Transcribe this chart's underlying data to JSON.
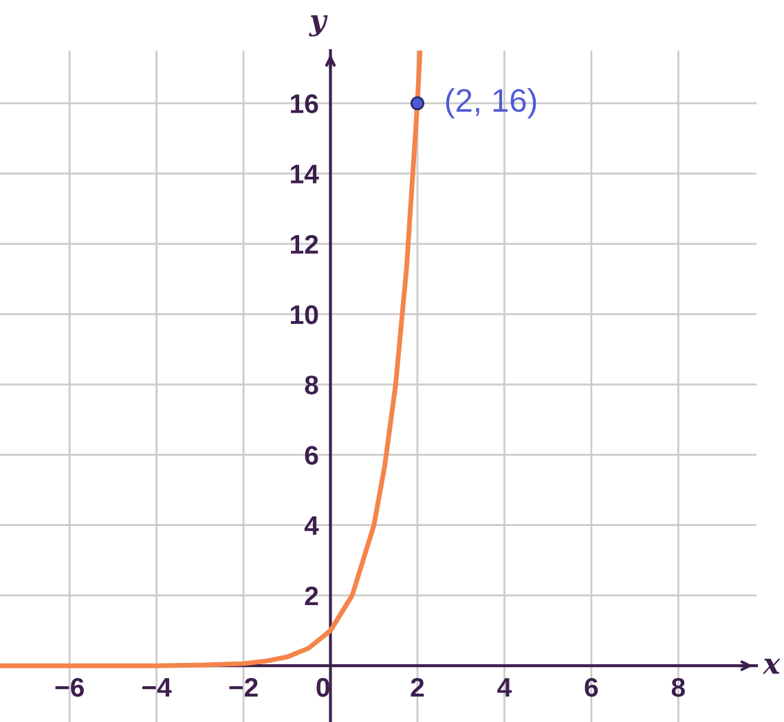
{
  "chart_data": {
    "type": "line",
    "xlabel": "x",
    "ylabel": "y",
    "series": [
      {
        "color": "#f5844a",
        "x": [
          -7.6,
          -5,
          -4,
          -3,
          -2,
          -1.5,
          -1,
          -0.5,
          0,
          0.5,
          1,
          1.25,
          1.5,
          1.75,
          2,
          2.06
        ],
        "values": [
          0,
          0,
          0,
          0.02,
          0.06,
          0.13,
          0.25,
          0.5,
          1,
          2,
          4,
          5.7,
          8,
          11.3,
          16,
          17.5
        ]
      },
      {
        "type": "scatter",
        "color": "#4f5bd5",
        "x": [
          2
        ],
        "values": [
          16
        ],
        "marker": "circle"
      }
    ],
    "annotations": [
      {
        "text": "(2, 16)",
        "x": 2,
        "y": 16
      }
    ],
    "xlim": [
      -7.6,
      9.8
    ],
    "ylim": [
      -1.6,
      17.5
    ],
    "xticks": [
      -6,
      -4,
      -2,
      0,
      2,
      4,
      6,
      8
    ],
    "yticks": [
      2,
      4,
      6,
      8,
      10,
      12,
      14,
      16
    ],
    "grid": true
  }
}
